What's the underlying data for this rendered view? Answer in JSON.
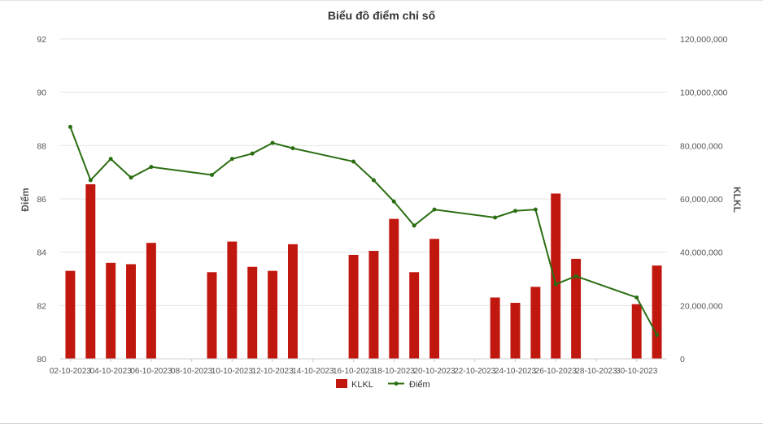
{
  "chart_data": {
    "type": "bar",
    "title": "Biểu đồ điểm chỉ số",
    "x": [
      "02-10-2023",
      "03-10-2023",
      "04-10-2023",
      "05-10-2023",
      "06-10-2023",
      "09-10-2023",
      "10-10-2023",
      "11-10-2023",
      "12-10-2023",
      "13-10-2023",
      "16-10-2023",
      "17-10-2023",
      "18-10-2023",
      "19-10-2023",
      "20-10-2023",
      "23-10-2023",
      "24-10-2023",
      "25-10-2023",
      "26-10-2023",
      "27-10-2023",
      "30-10-2023",
      "31-10-2023"
    ],
    "x_axis_start": "02-10-2023",
    "x_axis_end": "31-10-2023",
    "x_tick_labels": [
      "02-10-2023",
      "04-10-2023",
      "06-10-2023",
      "08-10-2023",
      "10-10-2023",
      "12-10-2023",
      "14-10-2023",
      "16-10-2023",
      "18-10-2023",
      "20-10-2023",
      "22-10-2023",
      "24-10-2023",
      "26-10-2023",
      "28-10-2023",
      "30-10-2023"
    ],
    "y_left": {
      "label": "Điểm",
      "min": 80,
      "max": 92,
      "ticks": [
        "80",
        "82",
        "84",
        "86",
        "88",
        "90",
        "92"
      ]
    },
    "y_right": {
      "label": "KLKL",
      "min": 0,
      "max": 120000000,
      "ticks": [
        "0",
        "20,000,000",
        "40,000,000",
        "60,000,000",
        "80,000,000",
        "100,000,000",
        "120,000,000"
      ]
    },
    "series": [
      {
        "name": "KLKL",
        "type": "bar",
        "axis": "right",
        "color": "#c0170f",
        "values": [
          33000000,
          65500000,
          36000000,
          35500000,
          43500000,
          32500000,
          44000000,
          34500000,
          33000000,
          43000000,
          39000000,
          40500000,
          52500000,
          32500000,
          45000000,
          23000000,
          21000000,
          27000000,
          62000000,
          37500000,
          20500000,
          35000000
        ]
      },
      {
        "name": "Điểm",
        "type": "line",
        "axis": "left",
        "color": "#2b6e12",
        "values": [
          88.7,
          86.7,
          87.5,
          86.8,
          87.2,
          86.9,
          87.5,
          87.7,
          88.1,
          87.9,
          87.4,
          86.7,
          85.9,
          85.0,
          85.6,
          85.3,
          85.55,
          85.6,
          82.8,
          83.1,
          82.3,
          80.9
        ]
      }
    ],
    "legend_position": "bottom-center",
    "grid": true
  }
}
